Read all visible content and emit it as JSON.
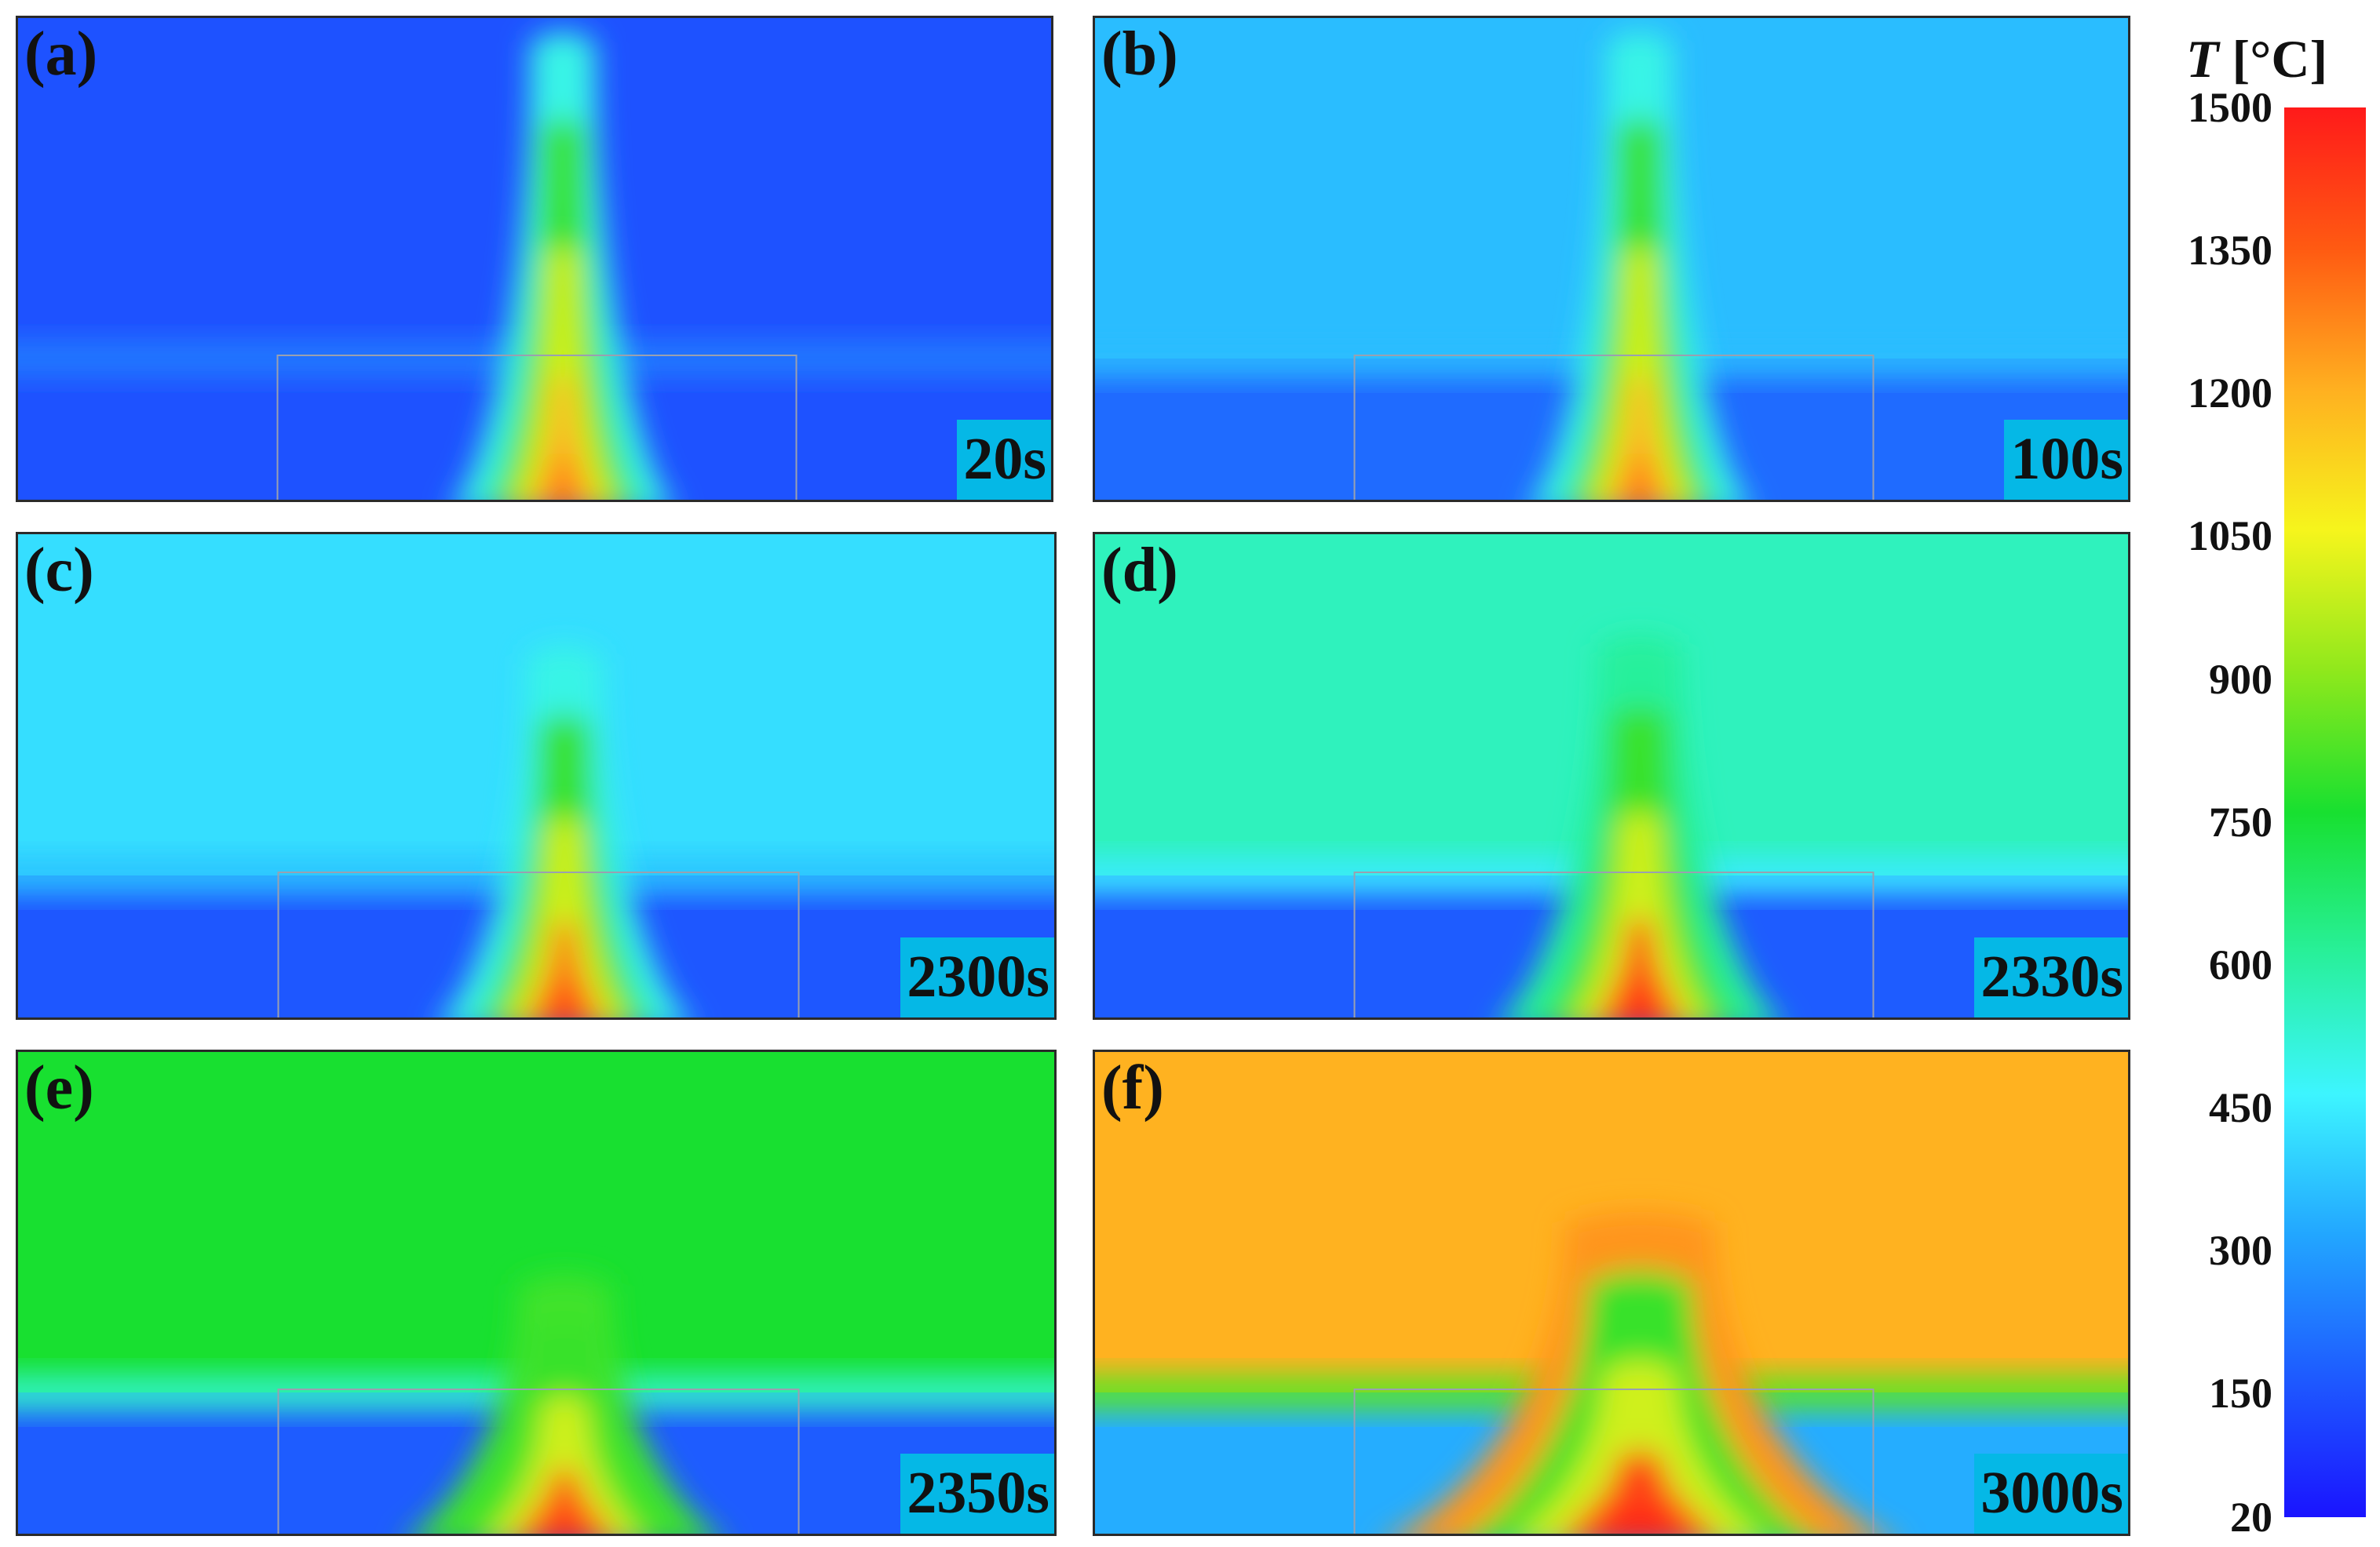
{
  "colorbar": {
    "symbol": "T",
    "unit": "[°C]",
    "ticks": [
      "1500",
      "1350",
      "1200",
      "1050",
      "900",
      "750",
      "600",
      "450",
      "300",
      "150",
      "20"
    ],
    "range": [
      20,
      1500
    ],
    "colormap": [
      "#1a14ff",
      "#1e5bff",
      "#22a6ff",
      "#3df5ff",
      "#28f09a",
      "#18e030",
      "#8fe81c",
      "#f6f51c",
      "#ffb020",
      "#ff5a12",
      "#ff1a1a"
    ]
  },
  "panels": [
    {
      "label": "(a)",
      "time": "20s",
      "upper_temp": 150,
      "lower_temp": 150,
      "plume_height": 0.98,
      "plume_width": 0.07,
      "base_temp": 1200
    },
    {
      "label": "(b)",
      "time": "100s",
      "upper_temp": 360,
      "lower_temp": 200,
      "plume_height": 0.98,
      "plume_width": 0.07,
      "base_temp": 1200
    },
    {
      "label": "(c)",
      "time": "2300s",
      "upper_temp": 420,
      "lower_temp": 160,
      "plume_height": 0.78,
      "plume_width": 0.08,
      "base_temp": 1300
    },
    {
      "label": "(d)",
      "time": "2330s",
      "upper_temp": 560,
      "lower_temp": 170,
      "plume_height": 0.8,
      "plume_width": 0.09,
      "base_temp": 1350
    },
    {
      "label": "(e)",
      "time": "2350s",
      "upper_temp": 760,
      "lower_temp": 170,
      "plume_height": 0.55,
      "plume_width": 0.1,
      "base_temp": 1350
    },
    {
      "label": "(f)",
      "time": "3000s",
      "upper_temp": 1200,
      "lower_temp": 330,
      "plume_height": 0.68,
      "plume_width": 0.16,
      "base_temp": 1400
    }
  ],
  "colors": {
    "badge": "#05b8e6",
    "frame": "#2a2a2a",
    "inner_box": "#9aa0b0"
  }
}
